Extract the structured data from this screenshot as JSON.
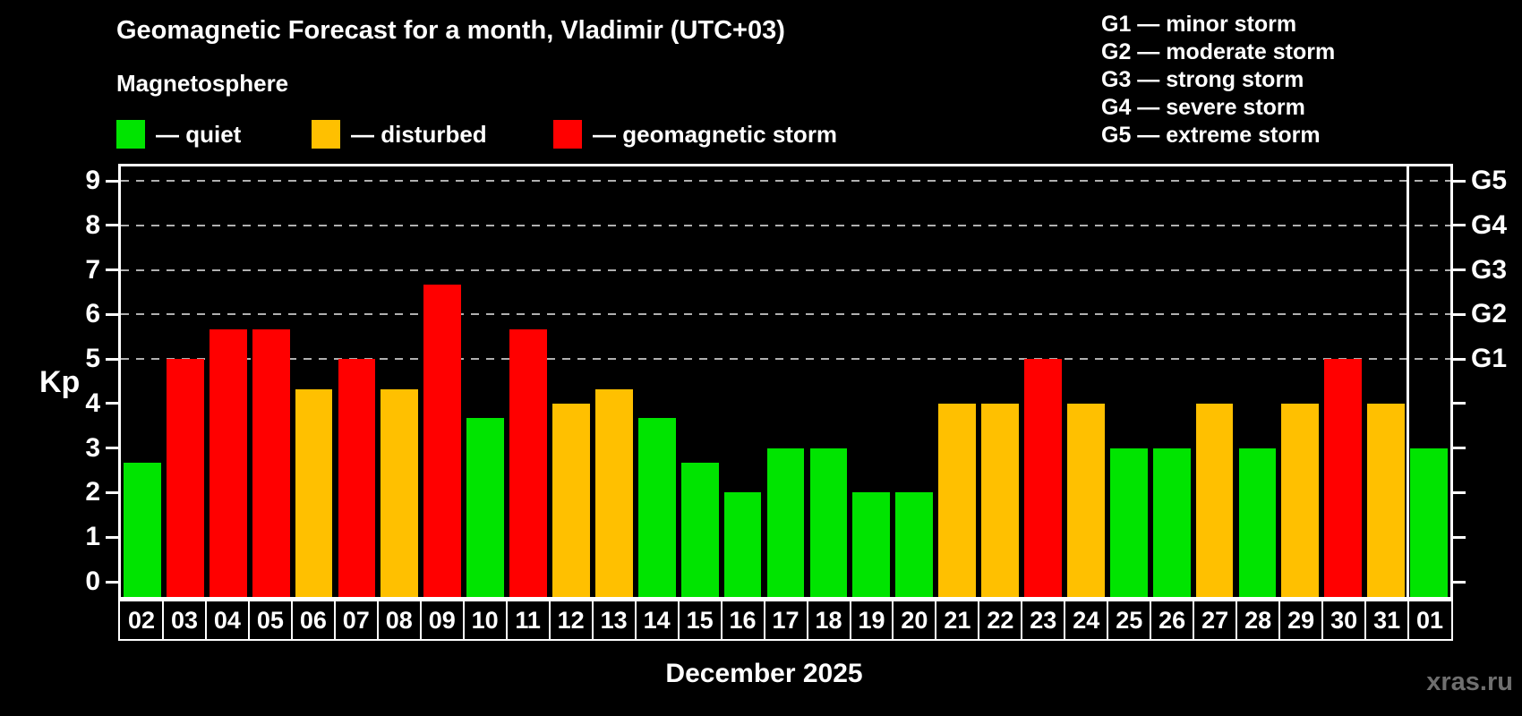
{
  "title": "Geomagnetic Forecast for a month, Vladimir (UTC+03)",
  "subtitle": "Magnetosphere",
  "legend": {
    "items": [
      {
        "label": "— quiet",
        "level": "quiet"
      },
      {
        "label": "— disturbed",
        "level": "disturbed"
      },
      {
        "label": "— geomagnetic storm",
        "level": "storm"
      }
    ]
  },
  "g_scale_legend": [
    "G1 — minor storm",
    "G2 — moderate storm",
    "G3 — strong storm",
    "G4 — severe storm",
    "G5 — extreme storm"
  ],
  "chart_data": {
    "type": "bar",
    "title": "Geomagnetic Forecast for a month, Vladimir (UTC+03)",
    "ylabel": "Kp",
    "xlabel": "December 2025",
    "ylim": [
      0,
      9
    ],
    "y_ticks": [
      0,
      1,
      2,
      3,
      4,
      5,
      6,
      7,
      8,
      9
    ],
    "grid_kp": [
      5,
      6,
      7,
      8,
      9
    ],
    "right_axis": [
      {
        "kp": 5,
        "label": "G1"
      },
      {
        "kp": 6,
        "label": "G2"
      },
      {
        "kp": 7,
        "label": "G3"
      },
      {
        "kp": 8,
        "label": "G4"
      },
      {
        "kp": 9,
        "label": "G5"
      }
    ],
    "level_colors": {
      "quiet": "#00e400",
      "disturbed": "#ffc000",
      "storm": "#ff0000"
    },
    "month_separator_after_index": 29,
    "bars": [
      {
        "day": "02",
        "kp": 2.67,
        "level": "quiet"
      },
      {
        "day": "03",
        "kp": 5.0,
        "level": "storm"
      },
      {
        "day": "04",
        "kp": 5.67,
        "level": "storm"
      },
      {
        "day": "05",
        "kp": 5.67,
        "level": "storm"
      },
      {
        "day": "06",
        "kp": 4.33,
        "level": "disturbed"
      },
      {
        "day": "07",
        "kp": 5.0,
        "level": "storm"
      },
      {
        "day": "08",
        "kp": 4.33,
        "level": "disturbed"
      },
      {
        "day": "09",
        "kp": 6.67,
        "level": "storm"
      },
      {
        "day": "10",
        "kp": 3.67,
        "level": "quiet"
      },
      {
        "day": "11",
        "kp": 5.67,
        "level": "storm"
      },
      {
        "day": "12",
        "kp": 4.0,
        "level": "disturbed"
      },
      {
        "day": "13",
        "kp": 4.33,
        "level": "disturbed"
      },
      {
        "day": "14",
        "kp": 3.67,
        "level": "quiet"
      },
      {
        "day": "15",
        "kp": 2.67,
        "level": "quiet"
      },
      {
        "day": "16",
        "kp": 2.0,
        "level": "quiet"
      },
      {
        "day": "17",
        "kp": 3.0,
        "level": "quiet"
      },
      {
        "day": "18",
        "kp": 3.0,
        "level": "quiet"
      },
      {
        "day": "19",
        "kp": 2.0,
        "level": "quiet"
      },
      {
        "day": "20",
        "kp": 2.0,
        "level": "quiet"
      },
      {
        "day": "21",
        "kp": 4.0,
        "level": "disturbed"
      },
      {
        "day": "22",
        "kp": 4.0,
        "level": "disturbed"
      },
      {
        "day": "23",
        "kp": 5.0,
        "level": "storm"
      },
      {
        "day": "24",
        "kp": 4.0,
        "level": "disturbed"
      },
      {
        "day": "25",
        "kp": 3.0,
        "level": "quiet"
      },
      {
        "day": "26",
        "kp": 3.0,
        "level": "quiet"
      },
      {
        "day": "27",
        "kp": 4.0,
        "level": "disturbed"
      },
      {
        "day": "28",
        "kp": 3.0,
        "level": "quiet"
      },
      {
        "day": "29",
        "kp": 4.0,
        "level": "disturbed"
      },
      {
        "day": "30",
        "kp": 5.0,
        "level": "storm"
      },
      {
        "day": "31",
        "kp": 4.0,
        "level": "disturbed"
      },
      {
        "day": "01",
        "kp": 3.0,
        "level": "quiet"
      }
    ]
  },
  "footer": {
    "month_label": "December 2025",
    "watermark": "xras.ru"
  }
}
